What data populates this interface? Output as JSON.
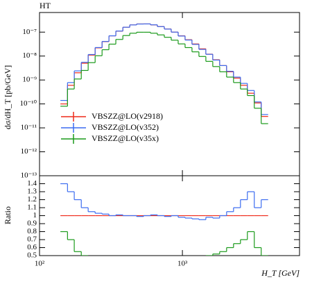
{
  "chart_data": [
    {
      "type": "histogram",
      "title": "HT",
      "ylabel": "dσ/dH_T [pb/GeV]",
      "logx": true,
      "logy": true,
      "legend": "left",
      "bins": [
        140,
        157,
        175,
        196,
        219,
        245,
        274,
        306,
        342,
        383,
        428,
        478,
        535,
        598,
        668,
        747,
        835,
        934,
        1044,
        1167,
        1305,
        1459,
        1631,
        1823,
        2038,
        2279,
        2548,
        2848,
        3184,
        3560,
        3980
      ],
      "xlim": [
        100,
        6600
      ],
      "ylim": [
        1e-13,
        6.6e-07
      ],
      "yticks": [
        {
          "value": 1e-13,
          "label": "10⁻¹³"
        },
        {
          "value": 1e-12,
          "label": "10⁻¹²"
        },
        {
          "value": 1e-11,
          "label": "10⁻¹¹"
        },
        {
          "value": 1e-10,
          "label": "10⁻¹⁰"
        },
        {
          "value": 1e-09,
          "label": "10⁻⁹"
        },
        {
          "value": 1e-08,
          "label": "10⁻⁸"
        },
        {
          "value": 1e-07,
          "label": "10⁻⁷"
        }
      ],
      "series": [
        {
          "name": "VBSZZ@LO(v2918)",
          "color": "#ee2a1a",
          "values": [
            1e-10,
            6e-10,
            2e-09,
            5e-09,
            1.1e-08,
            2.2e-08,
            4e-08,
            7e-08,
            1.1e-07,
            1.6e-07,
            2e-07,
            2.2e-07,
            2.2e-07,
            2e-07,
            1.7e-07,
            1.35e-07,
            1e-07,
            7e-08,
            4.8e-08,
            3.2e-08,
            2e-08,
            1.2e-08,
            7e-09,
            4e-09,
            2.2e-09,
            1.2e-09,
            6e-10,
            2.8e-10,
            1.1e-10,
            3e-11
          ]
        },
        {
          "name": "VBSZZ@LO(v352)",
          "color": "#3b6cf0",
          "values": [
            1.4e-10,
            7.8e-10,
            2.4e-09,
            5.5e-09,
            1.16e-08,
            2.27e-08,
            4.08e-08,
            7e-08,
            1.11e-07,
            1.6e-07,
            2e-07,
            2.18e-07,
            2.2e-07,
            2.02e-07,
            1.7e-07,
            1.34e-07,
            1e-07,
            6.86e-08,
            4.66e-08,
            3.07e-08,
            1.9e-08,
            1.18e-08,
            6.8e-09,
            4e-09,
            2.31e-09,
            1.32e-09,
            7.2e-10,
            3.64e-10,
            1.21e-10,
            3.6e-11
          ]
        },
        {
          "name": "VBSZZ@LO(v35x)",
          "color": "#1a9a1a",
          "values": [
            8e-11,
            4.2e-10,
            1.1e-09,
            2.5e-09,
            5.3e-09,
            1.03e-08,
            1.84e-08,
            3.15e-08,
            4.95e-08,
            7.2e-08,
            9e-08,
            9.9e-08,
            9.9e-08,
            9e-08,
            7.65e-08,
            6.08e-08,
            4.6e-08,
            3.22e-08,
            2.26e-08,
            1.5e-08,
            9.6e-09,
            6e-09,
            3.64e-09,
            2.2e-09,
            1.32e-09,
            7.8e-10,
            4.2e-10,
            2.24e-10,
            6.6e-11,
            1.5e-11
          ]
        }
      ]
    },
    {
      "type": "histogram",
      "ylabel": "Ratio",
      "xlabel": "H_T [GeV]",
      "logx": true,
      "bins": [
        140,
        157,
        175,
        196,
        219,
        245,
        274,
        306,
        342,
        383,
        428,
        478,
        535,
        598,
        668,
        747,
        835,
        934,
        1044,
        1167,
        1305,
        1459,
        1631,
        1823,
        2038,
        2279,
        2548,
        2848,
        3184,
        3560,
        3980
      ],
      "xlim": [
        100,
        6600
      ],
      "xticks": [
        {
          "value": 100,
          "label": "10²"
        },
        {
          "value": 1000,
          "label": "10³"
        }
      ],
      "ylim": [
        0.5,
        1.5
      ],
      "yticks": [
        0.5,
        0.6,
        0.7,
        0.8,
        0.9,
        1,
        1.1,
        1.2,
        1.3,
        1.4
      ],
      "series": [
        {
          "color": "#ee2a1a",
          "values": [
            1,
            1,
            1,
            1,
            1,
            1,
            1,
            1,
            1,
            1,
            1,
            1,
            1,
            1,
            1,
            1,
            1,
            1,
            1,
            1,
            1,
            1,
            1,
            1,
            1,
            1,
            1,
            1,
            1,
            1
          ]
        },
        {
          "color": "#3b6cf0",
          "values": [
            1.4,
            1.3,
            1.2,
            1.1,
            1.05,
            1.03,
            1.02,
            1.0,
            1.01,
            1.0,
            1.0,
            0.99,
            1.0,
            1.01,
            1.0,
            0.99,
            1.0,
            0.98,
            0.97,
            0.96,
            0.95,
            0.98,
            0.97,
            1.0,
            1.05,
            1.1,
            1.2,
            1.3,
            1.1,
            1.2
          ]
        },
        {
          "color": "#1a9a1a",
          "values": [
            0.8,
            0.7,
            0.55,
            0.5,
            0.48,
            0.47,
            0.46,
            0.45,
            0.45,
            0.45,
            0.45,
            0.45,
            0.45,
            0.45,
            0.45,
            0.45,
            0.46,
            0.46,
            0.47,
            0.47,
            0.48,
            0.5,
            0.52,
            0.55,
            0.6,
            0.65,
            0.7,
            0.8,
            0.6,
            0.5
          ]
        }
      ]
    }
  ]
}
